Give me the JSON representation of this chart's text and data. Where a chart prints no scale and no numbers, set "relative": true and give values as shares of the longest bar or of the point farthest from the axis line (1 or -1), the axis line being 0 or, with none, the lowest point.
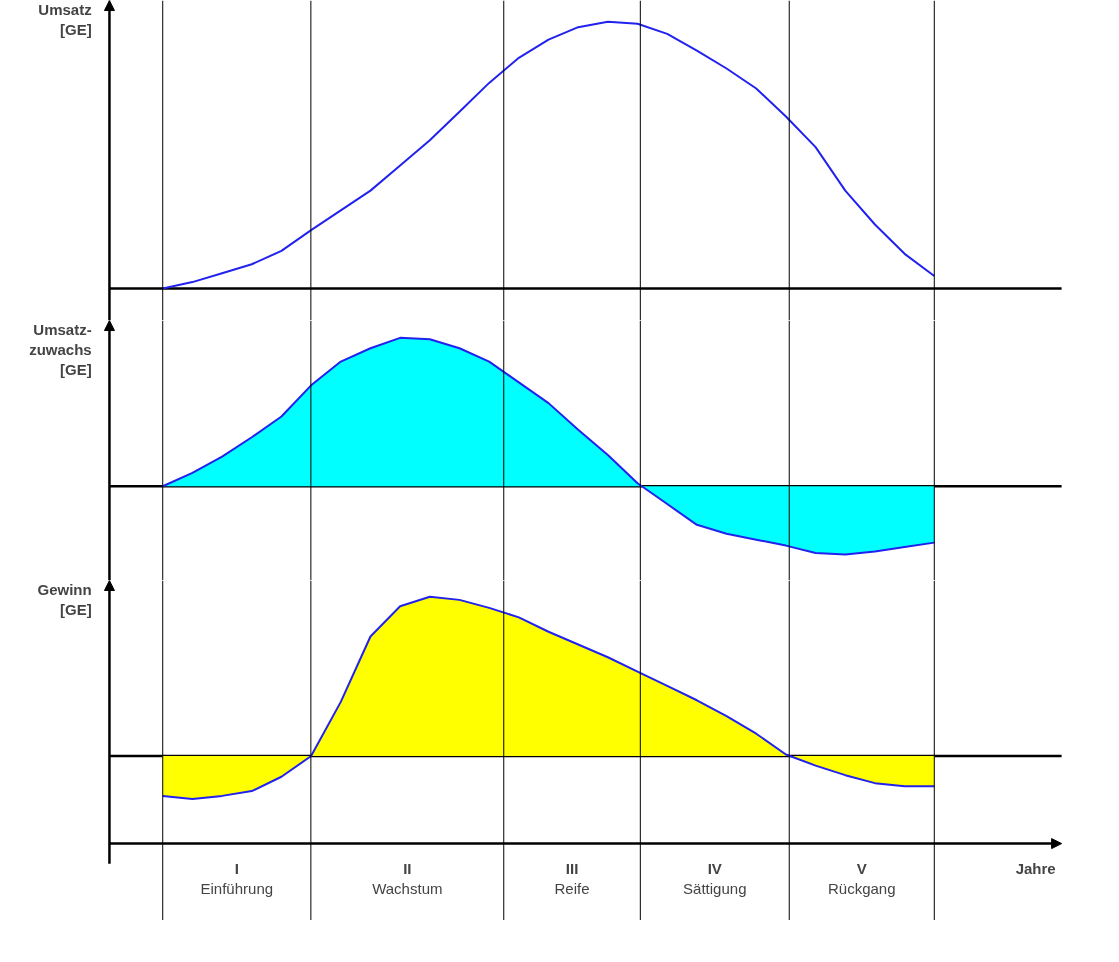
{
  "chart_data": [
    {
      "type": "line",
      "ylabel": "Umsatz\n[GE]",
      "relative": true,
      "categories": [
        null,
        null,
        null,
        null,
        null,
        null,
        null,
        null,
        null,
        null,
        null,
        null,
        null,
        null,
        null,
        null,
        null,
        null,
        null,
        null,
        null,
        null,
        null,
        null,
        null,
        null,
        null
      ],
      "grid": "x",
      "series": [
        {
          "color": "#2222ee",
          "values": [
            0,
            0.024,
            0.057,
            0.091,
            0.141,
            0.219,
            0.293,
            0.367,
            0.461,
            0.556,
            0.663,
            0.771,
            0.865,
            0.933,
            0.98,
            1,
            0.993,
            0.955,
            0.892,
            0.825,
            0.75,
            0.645,
            0.53,
            0.367,
            0.24,
            0.13,
            0.047
          ]
        }
      ]
    },
    {
      "type": "area",
      "ylabel": "Umsatz-\nzuwachs\n[GE]",
      "relative": true,
      "categories": [
        null,
        null,
        null,
        null,
        null,
        null,
        null,
        null,
        null,
        null,
        null,
        null,
        null,
        null,
        null,
        null,
        null,
        null,
        null,
        null,
        null,
        null,
        null,
        null,
        null,
        null,
        null
      ],
      "grid": "x",
      "series": [
        {
          "color": "#00ffff",
          "values": [
            0,
            0.09,
            0.2,
            0.33,
            0.47,
            0.68,
            0.84,
            0.93,
            1,
            0.99,
            0.93,
            0.84,
            0.7,
            0.56,
            0.38,
            0.21,
            0.02,
            -0.12,
            -0.26,
            -0.32,
            -0.36,
            -0.4,
            -0.45,
            -0.46,
            -0.44,
            -0.41,
            -0.38
          ]
        }
      ]
    },
    {
      "type": "area",
      "ylabel": "Gewinn\n[GE]",
      "xlabel": "Jahre",
      "relative": true,
      "categories": [
        null,
        null,
        null,
        null,
        null,
        null,
        null,
        null,
        null,
        null,
        null,
        null,
        null,
        null,
        null,
        null,
        null,
        null,
        null,
        null,
        null,
        null,
        null,
        null,
        null,
        null,
        null
      ],
      "grid": "x",
      "series": [
        {
          "color": "#ffff00",
          "values": [
            -0.25,
            -0.27,
            -0.25,
            -0.22,
            -0.13,
            0,
            0.34,
            0.75,
            0.94,
            1,
            0.98,
            0.93,
            0.87,
            0.78,
            0.7,
            0.62,
            0.53,
            0.44,
            0.35,
            0.25,
            0.14,
            0.01,
            -0.06,
            -0.12,
            -0.17,
            -0.19,
            -0.19
          ]
        }
      ],
      "annotations": [
        "I\nEinführung",
        "II\nWachstum",
        "III\nReife",
        "IV\nSättigung",
        "V\nRückgang"
      ]
    }
  ]
}
